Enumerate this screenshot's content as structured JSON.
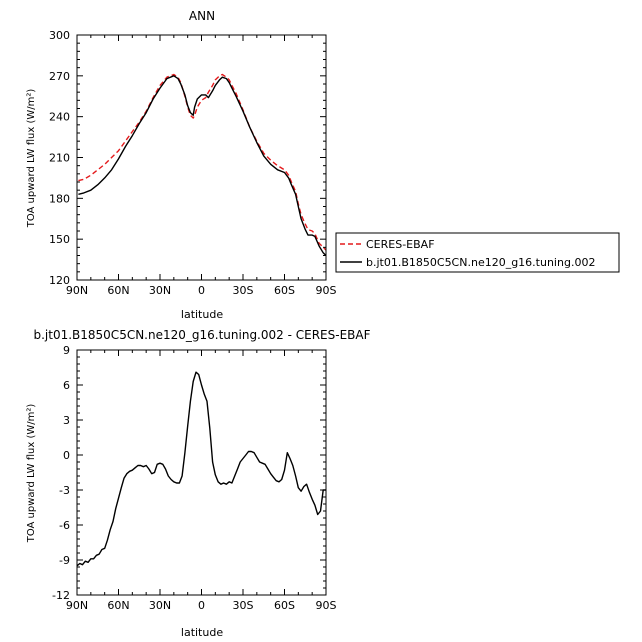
{
  "chart_data": [
    {
      "type": "line",
      "title": "ANN",
      "xlabel": "latitude",
      "ylabel": "TOA upward LW flux (W/m²)",
      "xlim": [
        90,
        -90
      ],
      "ylim": [
        120,
        300
      ],
      "x_ticks": [
        90,
        60,
        30,
        0,
        -30,
        -60,
        -90
      ],
      "x_tick_labels": [
        "90N",
        "60N",
        "30N",
        "0",
        "30S",
        "60S",
        "90S"
      ],
      "y_ticks": [
        120,
        150,
        180,
        210,
        240,
        270,
        300
      ],
      "y_tick_labels": [
        "120",
        "150",
        "180",
        "210",
        "240",
        "270",
        "300"
      ],
      "grid": false,
      "legend_position": "right",
      "series": [
        {
          "name": "CERES-EBAF",
          "color": "#e41a1c",
          "dash": "dashed",
          "x": [
            89,
            85,
            80,
            75,
            70,
            65,
            60,
            55,
            50,
            45,
            40,
            35,
            30,
            25,
            20,
            17,
            15,
            12,
            10,
            8,
            6,
            5,
            3,
            0,
            -3,
            -5,
            -8,
            -10,
            -13,
            -15,
            -18,
            -20,
            -22,
            -25,
            -30,
            -35,
            -40,
            -45,
            -50,
            -55,
            -60,
            -63,
            -65,
            -68,
            -70,
            -72,
            -75,
            -77,
            -80,
            -82,
            -85,
            -88,
            -90
          ],
          "y": [
            193,
            194,
            197,
            201,
            205,
            210,
            215,
            222,
            229,
            236,
            244,
            254,
            263,
            269,
            271,
            269,
            265,
            255,
            247,
            241,
            239,
            241,
            247,
            252,
            254,
            258,
            263,
            267,
            270,
            271,
            269,
            267,
            263,
            257,
            245,
            232,
            222,
            213,
            208,
            204,
            201,
            197,
            192,
            185,
            176,
            168,
            161,
            157,
            156,
            154,
            147,
            144,
            142
          ]
        },
        {
          "name": "b.jt01.B1850C5CN.ne120_g16.tuning.002",
          "color": "#000000",
          "dash": "solid",
          "x": [
            89,
            85,
            80,
            75,
            70,
            65,
            60,
            55,
            50,
            45,
            40,
            35,
            30,
            25,
            20,
            17,
            15,
            12,
            10,
            8,
            6,
            5,
            3,
            0,
            -3,
            -5,
            -8,
            -10,
            -13,
            -15,
            -18,
            -20,
            -22,
            -25,
            -30,
            -35,
            -40,
            -45,
            -50,
            -55,
            -60,
            -63,
            -65,
            -68,
            -70,
            -72,
            -75,
            -77,
            -80,
            -82,
            -85,
            -88,
            -90
          ],
          "y": [
            183,
            184,
            186,
            190,
            195,
            201,
            209,
            218,
            226,
            235,
            243,
            253,
            261,
            268,
            270,
            268,
            264,
            256,
            248,
            243,
            241,
            247,
            253,
            256,
            256,
            254,
            259,
            263,
            267,
            269,
            268,
            265,
            261,
            255,
            244,
            232,
            221,
            211,
            205,
            201,
            199,
            195,
            190,
            183,
            174,
            165,
            157,
            153,
            153,
            152,
            145,
            140,
            138
          ]
        }
      ]
    },
    {
      "type": "line",
      "title": "b.jt01.B1850C5CN.ne120_g16.tuning.002 - CERES-EBAF",
      "xlabel": "latitude",
      "ylabel": "TOA upward LW flux (W/m²)",
      "xlim": [
        90,
        -90
      ],
      "ylim": [
        -12,
        9
      ],
      "x_ticks": [
        90,
        60,
        30,
        0,
        -30,
        -60,
        -90
      ],
      "x_tick_labels": [
        "90N",
        "60N",
        "30N",
        "0",
        "30S",
        "60S",
        "90S"
      ],
      "y_ticks": [
        -12,
        -9,
        -6,
        -3,
        0,
        3,
        6,
        9
      ],
      "y_tick_labels": [
        "-12",
        "-9",
        "-6",
        "-3",
        "0",
        "3",
        "6",
        "9"
      ],
      "grid": false,
      "series": [
        {
          "color": "#000000",
          "dash": "solid",
          "x": [
            90,
            88,
            86,
            84,
            82,
            80,
            78,
            76,
            74,
            72,
            70,
            68,
            66,
            64,
            62,
            60,
            58,
            56,
            54,
            52,
            50,
            48,
            46,
            44,
            42,
            40,
            38,
            36,
            34,
            32,
            30,
            28,
            26,
            24,
            22,
            20,
            18,
            16,
            14,
            12,
            10,
            8,
            6,
            4,
            2,
            0,
            -2,
            -4,
            -6,
            -8,
            -10,
            -12,
            -14,
            -16,
            -18,
            -20,
            -22,
            -24,
            -26,
            -28,
            -30,
            -32,
            -34,
            -36,
            -38,
            -40,
            -42,
            -44,
            -46,
            -48,
            -50,
            -52,
            -54,
            -56,
            -58,
            -60,
            -62,
            -64,
            -66,
            -68,
            -70,
            -72,
            -74,
            -76,
            -78,
            -80,
            -82,
            -84,
            -86,
            -88,
            -90
          ],
          "y": [
            -9.5,
            -9.3,
            -9.4,
            -9.1,
            -9.2,
            -8.9,
            -8.9,
            -8.6,
            -8.5,
            -8.1,
            -8.0,
            -7.3,
            -6.4,
            -5.7,
            -4.6,
            -3.7,
            -2.8,
            -2.0,
            -1.6,
            -1.4,
            -1.3,
            -1.1,
            -0.9,
            -0.9,
            -1.0,
            -0.9,
            -1.2,
            -1.6,
            -1.5,
            -0.8,
            -0.7,
            -0.8,
            -1.2,
            -1.8,
            -2.1,
            -2.3,
            -2.4,
            -2.4,
            -1.8,
            0.2,
            2.5,
            4.6,
            6.3,
            7.1,
            6.9,
            6.0,
            5.2,
            4.6,
            2.3,
            -0.6,
            -1.7,
            -2.3,
            -2.5,
            -2.4,
            -2.5,
            -2.3,
            -2.4,
            -1.8,
            -1.2,
            -0.6,
            -0.3,
            0.0,
            0.3,
            0.3,
            0.2,
            -0.2,
            -0.6,
            -0.7,
            -0.8,
            -1.2,
            -1.6,
            -1.9,
            -2.2,
            -2.3,
            -2.1,
            -1.3,
            0.2,
            -0.3,
            -0.9,
            -1.8,
            -2.8,
            -3.1,
            -2.7,
            -2.5,
            -3.2,
            -3.8,
            -4.3,
            -5.1,
            -4.8,
            -3.0,
            -3.0
          ]
        }
      ]
    }
  ]
}
